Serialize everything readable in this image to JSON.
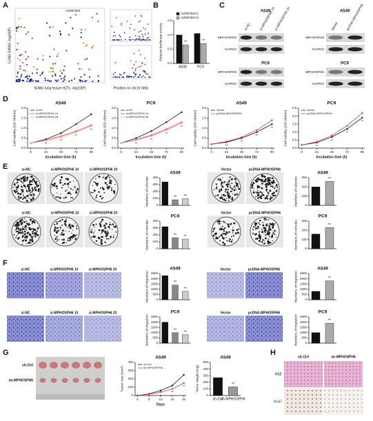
{
  "panel_labels": [
    "A",
    "B",
    "C",
    "D",
    "E",
    "F",
    "G",
    "H"
  ],
  "panel_a": {
    "ylabel": "LUAD GWAS -log10(P)",
    "xlabel": "NJMU lung tissue eQTL -log10(P)",
    "snp": "rs2987353",
    "xlabel_right": "Position on chr16 (Mb)"
  },
  "panel_c": {
    "cell_lines": [
      "A549",
      "PC9"
    ],
    "lanes_si": [
      "si-NC",
      "si-MPHOSPH6 1#",
      "si-MPHOSPH6 2#"
    ],
    "lanes_ov": [
      "Vector",
      "pcDNA-MPHOSPH6"
    ],
    "proteins": [
      "MPHOSPH6",
      "GAPDH"
    ]
  },
  "panel_h": {
    "groups": [
      "sh-Ctrl",
      "sh-MPHOSPH6"
    ],
    "stains": [
      "H&E",
      "Ki-67"
    ]
  },
  "chart_data": [
    {
      "type": "bar",
      "ylabel": "Relative luciferase activity",
      "categories": [
        "A549",
        "PC9"
      ],
      "series": [
        {
          "name": "rs2987353-C",
          "color": "#111111",
          "values": [
            1.0,
            1.05
          ]
        },
        {
          "name": "rs2987353-G",
          "color": "#aaaaaa",
          "values": [
            0.65,
            0.7
          ]
        }
      ],
      "annotations": [
        "**",
        "**"
      ],
      "ylim": [
        0,
        1.5
      ],
      "yticks": [
        {
          "value": 0,
          "label": "0.0"
        },
        {
          "value": 0.5,
          "label": "0.5"
        },
        {
          "value": 1,
          "label": "1.0"
        },
        {
          "value": 1.5,
          "label": "1.5"
        }
      ]
    },
    {
      "type": "line",
      "title": "A549",
      "ylabel": "Cell viability (OD 490nm)",
      "xlabel": "Incubation time (h)",
      "x": [
        0,
        24,
        48,
        72,
        96
      ],
      "series": [
        {
          "name": "si-NC",
          "color": "#111111",
          "values": [
            0.25,
            0.45,
            0.75,
            1.2,
            1.7
          ]
        },
        {
          "name": "si-MPHOSPH6 1#",
          "color": "#e0403a",
          "values": [
            0.25,
            0.4,
            0.6,
            0.85,
            1.15
          ]
        },
        {
          "name": "si-MPHOSPH6 2#",
          "color": "#f2a0a0",
          "values": [
            0.25,
            0.38,
            0.55,
            0.8,
            1.1
          ]
        }
      ],
      "annotations": [
        null,
        "**",
        "**",
        "**",
        "**"
      ],
      "xlim": [
        -5,
        100
      ],
      "xticks": [
        0,
        24,
        48,
        72,
        96
      ],
      "ylim": [
        0,
        2
      ],
      "yticks": [
        {
          "value": 0,
          "label": "0.0"
        },
        {
          "value": 0.5,
          "label": "0.5"
        },
        {
          "value": 1,
          "label": "1.0"
        },
        {
          "value": 1.5,
          "label": "1.5"
        },
        {
          "value": 2,
          "label": "2.0"
        }
      ],
      "legend": "upper left"
    },
    {
      "type": "line",
      "title": "PC9",
      "ylabel": "Cell viability (OD 490nm)",
      "xlabel": "Incubation time (h)",
      "x": [
        0,
        24,
        48,
        72,
        96
      ],
      "series": [
        {
          "name": "si-NC",
          "color": "#111111",
          "values": [
            0.25,
            0.5,
            0.85,
            1.3,
            1.8
          ]
        },
        {
          "name": "si-MPHOSPH6 1#",
          "color": "#e0403a",
          "values": [
            0.25,
            0.42,
            0.65,
            0.95,
            1.3
          ]
        },
        {
          "name": "si-MPHOSPH6 2#",
          "color": "#f2a0a0",
          "values": [
            0.25,
            0.4,
            0.6,
            0.9,
            1.25
          ]
        }
      ],
      "annotations": [
        null,
        "**",
        "**",
        "**",
        "**"
      ],
      "xlim": [
        -5,
        100
      ],
      "xticks": [
        0,
        24,
        48,
        72,
        96
      ],
      "ylim": [
        0,
        2
      ],
      "yticks": [
        {
          "value": 0,
          "label": "0.0"
        },
        {
          "value": 0.5,
          "label": "0.5"
        },
        {
          "value": 1,
          "label": "1.0"
        },
        {
          "value": 1.5,
          "label": "1.5"
        },
        {
          "value": 2,
          "label": "2.0"
        }
      ],
      "legend": "upper left"
    },
    {
      "type": "line",
      "title": "A549",
      "ylabel": "Cell viability (OD 490nm)",
      "xlabel": "Incubation time (h)",
      "x": [
        0,
        24,
        48,
        72,
        96
      ],
      "series": [
        {
          "name": "Vector",
          "color": "#111111",
          "values": [
            0.2,
            0.3,
            0.5,
            0.8,
            1.2
          ]
        },
        {
          "name": "pcDNA-MPHOSPH6",
          "color": "#d94040",
          "values": [
            0.2,
            0.33,
            0.55,
            0.9,
            1.4
          ]
        }
      ],
      "annotations": [
        null,
        "**",
        "**",
        "**",
        "**"
      ],
      "xlim": [
        -5,
        100
      ],
      "xticks": [
        0,
        24,
        48,
        72,
        96
      ],
      "ylim": [
        0,
        2
      ],
      "yticks": [
        {
          "value": 0,
          "label": "0.0"
        },
        {
          "value": 0.5,
          "label": "0.5"
        },
        {
          "value": 1,
          "label": "1.0"
        },
        {
          "value": 1.5,
          "label": "1.5"
        },
        {
          "value": 2,
          "label": "2.0"
        }
      ],
      "legend": "upper left"
    },
    {
      "type": "line",
      "title": "PC9",
      "ylabel": "Cell viability (OD 490nm)",
      "xlabel": "Incubation time (h)",
      "x": [
        0,
        24,
        48,
        72,
        96
      ],
      "series": [
        {
          "name": "Vector",
          "color": "#111111",
          "values": [
            0.2,
            0.35,
            0.7,
            1.2,
            1.9
          ]
        },
        {
          "name": "pcDNA-MPHOSPH6",
          "color": "#d94040",
          "values": [
            0.2,
            0.4,
            0.8,
            1.4,
            2.2
          ]
        }
      ],
      "annotations": [
        null,
        "**",
        "**",
        "**",
        "**"
      ],
      "xlim": [
        -5,
        100
      ],
      "xticks": [
        0,
        24,
        48,
        72,
        96
      ],
      "ylim": [
        0,
        2.5
      ],
      "yticks": [
        {
          "value": 0,
          "label": "0.0"
        },
        {
          "value": 0.5,
          "label": "0.5"
        },
        {
          "value": 1,
          "label": "1.0"
        },
        {
          "value": 1.5,
          "label": "1.5"
        },
        {
          "value": 2,
          "label": "2.0"
        },
        {
          "value": 2.5,
          "label": "2.5"
        }
      ],
      "legend": "upper left"
    },
    {
      "type": "bar",
      "title": "A549",
      "ylabel": "Numbers of colonies",
      "categories": [
        "si-NC",
        "si-MPHOSPH6 1#",
        "si-MPHOSPH6 2#"
      ],
      "values": [
        340,
        80,
        95
      ],
      "colors": [
        "#111111",
        "#888888",
        "#cccccc"
      ],
      "annotations": [
        null,
        "**",
        "**"
      ],
      "ylim": [
        0,
        400
      ],
      "yticks": [
        0,
        100,
        200,
        300,
        400
      ]
    },
    {
      "type": "bar",
      "title": "A549",
      "ylabel": "Numbers of colonies",
      "categories": [
        "Vector",
        "pcDNA-MPHOSPH6"
      ],
      "values": [
        200,
        260
      ],
      "colors": [
        "#111111",
        "#aaaaaa"
      ],
      "annotations": [
        null,
        "**"
      ],
      "ylim": [
        0,
        300
      ],
      "yticks": [
        0,
        100,
        200,
        300
      ]
    },
    {
      "type": "bar",
      "title": "PC9",
      "ylabel": "Numbers of colonies",
      "categories": [
        "si-NC",
        "si-MPHOSPH6 1#",
        "si-MPHOSPH6 2#"
      ],
      "values": [
        320,
        160,
        140
      ],
      "colors": [
        "#111111",
        "#888888",
        "#cccccc"
      ],
      "annotations": [
        null,
        "**",
        "**"
      ],
      "ylim": [
        0,
        400
      ],
      "yticks": [
        0,
        100,
        200,
        300,
        400
      ]
    },
    {
      "type": "bar",
      "title": "PC9",
      "ylabel": "Numbers of colonies",
      "categories": [
        "Vector",
        "pcDNA-MPHOSPH6"
      ],
      "values": [
        160,
        230
      ],
      "colors": [
        "#111111",
        "#aaaaaa"
      ],
      "annotations": [
        null,
        "**"
      ],
      "ylim": [
        0,
        300
      ],
      "yticks": [
        0,
        100,
        200,
        300
      ]
    },
    {
      "type": "bar",
      "title": "A549",
      "ylabel": "Numbers of migration",
      "categories": [
        "si-NC",
        "si-MPHOSPH6 1#",
        "si-MPHOSPH6 2#"
      ],
      "values": [
        2300,
        1400,
        800
      ],
      "colors": [
        "#111111",
        "#888888",
        "#cccccc"
      ],
      "annotations": [
        null,
        "**",
        "**"
      ],
      "ylim": [
        0,
        2500
      ],
      "yticks": [
        0,
        500,
        1000,
        1500,
        2000,
        2500
      ]
    },
    {
      "type": "bar",
      "title": "A549",
      "ylabel": "Numbers of migration",
      "categories": [
        "Vector",
        "pcDNA-MPHOSPH6"
      ],
      "values": [
        800,
        1800
      ],
      "colors": [
        "#111111",
        "#aaaaaa"
      ],
      "annotations": [
        null,
        "**"
      ],
      "ylim": [
        0,
        2500
      ],
      "yticks": [
        0,
        500,
        1000,
        1500,
        2000,
        2500
      ]
    },
    {
      "type": "bar",
      "title": "PC9",
      "ylabel": "Numbers of migration",
      "categories": [
        "si-NC",
        "si-MPHOSPH6 1#",
        "si-MPHOSPH6 2#"
      ],
      "values": [
        2000,
        1000,
        800
      ],
      "colors": [
        "#111111",
        "#888888",
        "#cccccc"
      ],
      "annotations": [
        null,
        "**",
        "**"
      ],
      "ylim": [
        0,
        2500
      ],
      "yticks": [
        0,
        500,
        1000,
        1500,
        2000,
        2500
      ]
    },
    {
      "type": "bar",
      "title": "PC9",
      "ylabel": "Numbers of migration",
      "categories": [
        "Vector",
        "pcDNA-MPHOSPH6"
      ],
      "values": [
        1000,
        1900
      ],
      "colors": [
        "#111111",
        "#aaaaaa"
      ],
      "annotations": [
        null,
        "**"
      ],
      "ylim": [
        0,
        2500
      ],
      "yticks": [
        0,
        500,
        1000,
        1500,
        2000,
        2500
      ]
    },
    {
      "type": "line",
      "title": "A549",
      "ylabel": "Tumor size (mm³)",
      "xlabel": "Days",
      "x": [
        0,
        5,
        10,
        15,
        20
      ],
      "series": [
        {
          "name": "sh-Ctrl",
          "color": "#111111",
          "values": [
            0,
            20,
            60,
            120,
            250
          ]
        },
        {
          "name": "sh-MPHOSPH6",
          "color": "#d94040",
          "values": [
            0,
            15,
            40,
            80,
            150
          ]
        }
      ],
      "annotations": [
        null,
        null,
        "*",
        "**",
        "**"
      ],
      "xlim": [
        -1,
        21
      ],
      "xticks": [
        0,
        5,
        10,
        15,
        20
      ],
      "ylim": [
        0,
        400
      ],
      "yticks": [
        0,
        100,
        200,
        300,
        400
      ],
      "legend": "upper left"
    },
    {
      "type": "bar",
      "title": "A549",
      "ylabel": "Tumor weight (mg)",
      "categories": [
        "sh-Ctrl",
        "sh-MPHOSPH6"
      ],
      "values": [
        270,
        130
      ],
      "colors": [
        "#111111",
        "#999999"
      ],
      "annotations": [
        null,
        "**"
      ],
      "ylim": [
        0,
        500
      ],
      "yticks": [
        0,
        100,
        200,
        300,
        400,
        500
      ]
    }
  ]
}
